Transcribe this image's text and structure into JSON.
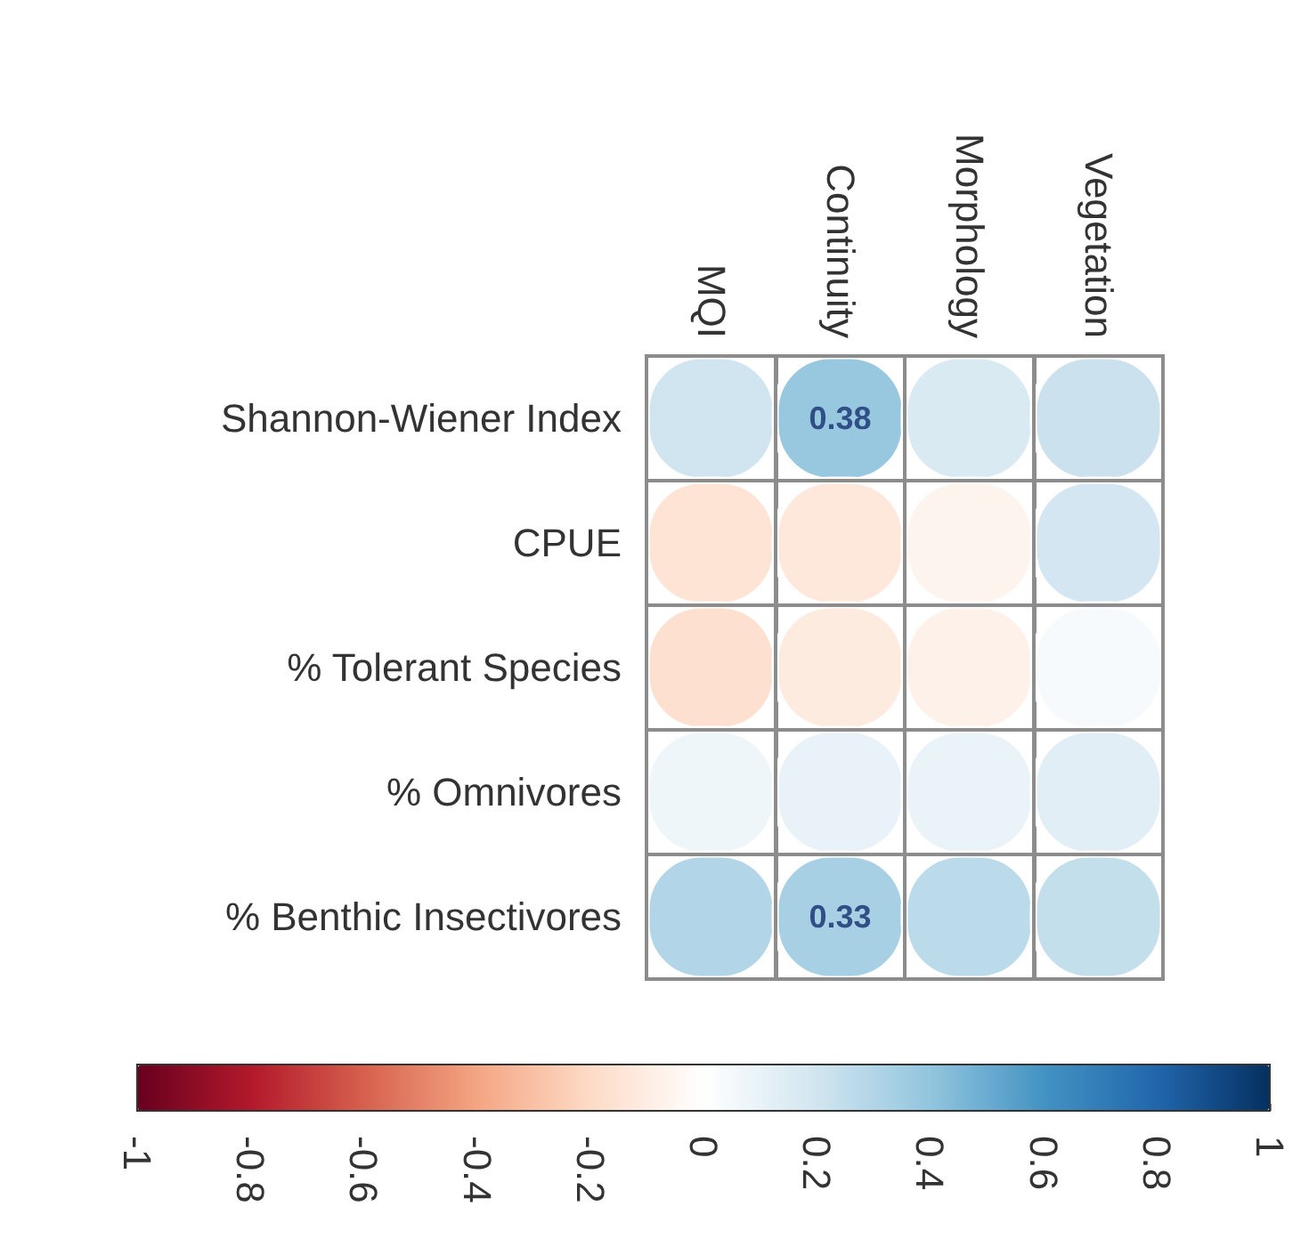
{
  "chart_data": {
    "type": "heatmap",
    "categories": [
      "MQI",
      "Continuity",
      "Morphology",
      "Vegetation"
    ],
    "y_categories": [
      "Shannon-Wiener Index",
      "CPUE",
      "% Tolerant Species",
      "% Omnivores",
      "% Benthic Insectivores"
    ],
    "cells": [
      [
        0.2,
        0.38,
        0.16,
        0.22
      ],
      [
        -0.15,
        -0.13,
        -0.06,
        0.19
      ],
      [
        -0.17,
        -0.11,
        -0.08,
        0.04
      ],
      [
        0.07,
        0.1,
        0.09,
        0.13
      ],
      [
        0.3,
        0.33,
        0.27,
        0.24
      ]
    ],
    "cell_labels": [
      [
        null,
        "0.38",
        null,
        null
      ],
      [
        null,
        null,
        null,
        null
      ],
      [
        null,
        null,
        null,
        null
      ],
      [
        null,
        null,
        null,
        null
      ],
      [
        null,
        "0.33",
        null,
        null
      ]
    ],
    "clim": [
      -1,
      1
    ],
    "cticks": [
      -1,
      -0.8,
      -0.6,
      -0.4,
      -0.2,
      0,
      0.2,
      0.4,
      0.6,
      0.8,
      1
    ]
  }
}
